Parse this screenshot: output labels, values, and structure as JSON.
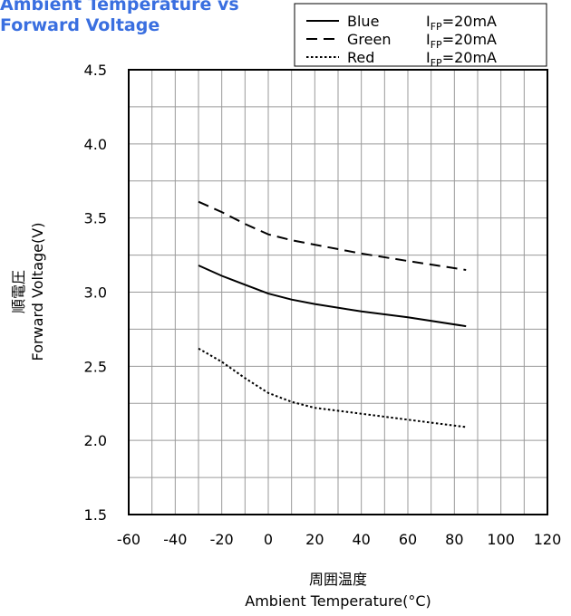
{
  "title_lines": [
    "Ambient Temperature vs",
    "Forward Voltage"
  ],
  "chart_data": {
    "type": "line",
    "title": "Ambient Temperature vs Forward Voltage",
    "xlabel_jp": "周囲温度",
    "xlabel": "Ambient Temperature(°C)",
    "ylabel_jp": "順電圧",
    "ylabel": "Forward Voltage(V)",
    "xlim": [
      -60,
      120
    ],
    "ylim": [
      1.5,
      4.5
    ],
    "xticks": [
      -60,
      -40,
      -20,
      0,
      20,
      40,
      60,
      80,
      100,
      120
    ],
    "yticks": [
      1.5,
      2.0,
      2.5,
      3.0,
      3.5,
      4.0,
      4.5
    ],
    "ytick_labels": [
      "1.5",
      "2.0",
      "2.5",
      "3.0",
      "3.5",
      "4.0",
      "4.5"
    ],
    "grid": true,
    "legend_position": "top-right",
    "series": [
      {
        "name": "Blue",
        "condition": "=20mA",
        "style": "solid",
        "x": [
          -30,
          -20,
          -10,
          0,
          10,
          20,
          40,
          60,
          85
        ],
        "y": [
          3.18,
          3.11,
          3.05,
          2.99,
          2.95,
          2.92,
          2.87,
          2.83,
          2.77
        ]
      },
      {
        "name": "Green",
        "condition": "=20mA",
        "style": "dashed",
        "x": [
          -30,
          -20,
          -10,
          0,
          10,
          20,
          40,
          60,
          85
        ],
        "y": [
          3.61,
          3.54,
          3.46,
          3.39,
          3.35,
          3.32,
          3.26,
          3.21,
          3.15
        ]
      },
      {
        "name": "Red",
        "condition": "=20mA",
        "style": "dotted",
        "x": [
          -30,
          -20,
          -10,
          0,
          10,
          20,
          40,
          60,
          85
        ],
        "y": [
          2.62,
          2.53,
          2.42,
          2.32,
          2.26,
          2.22,
          2.18,
          2.14,
          2.09
        ]
      }
    ],
    "legend_current_symbol": {
      "main": "I",
      "sub": "FP"
    }
  }
}
